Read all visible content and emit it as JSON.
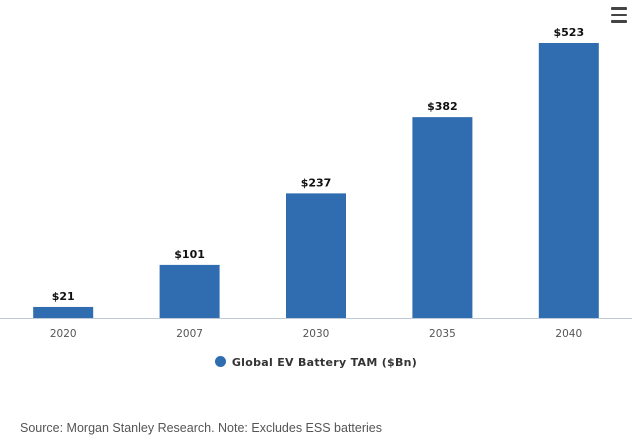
{
  "chart_data": {
    "type": "bar",
    "categories": [
      "2020",
      "2007",
      "2030",
      "2035",
      "2040"
    ],
    "series": [
      {
        "name": "Global EV Battery TAM ($Bn)",
        "values": [
          21,
          101,
          237,
          382,
          523
        ],
        "labels": [
          "$21",
          "$101",
          "$237",
          "$382",
          "$523"
        ]
      }
    ],
    "title": "",
    "xlabel": "",
    "ylabel": "",
    "ylim": [
      0,
      523
    ],
    "grid": false,
    "legend": "bottom-center"
  },
  "colors": {
    "bar": "#2f6db0",
    "axis": "#bfc8d6"
  },
  "legend": {
    "label": "Global EV Battery TAM ($Bn)"
  },
  "menu": {
    "icon": "hamburger-menu-icon"
  },
  "footer": {
    "source": "Source: Morgan Stanley Research. Note: Excludes ESS batteries"
  }
}
